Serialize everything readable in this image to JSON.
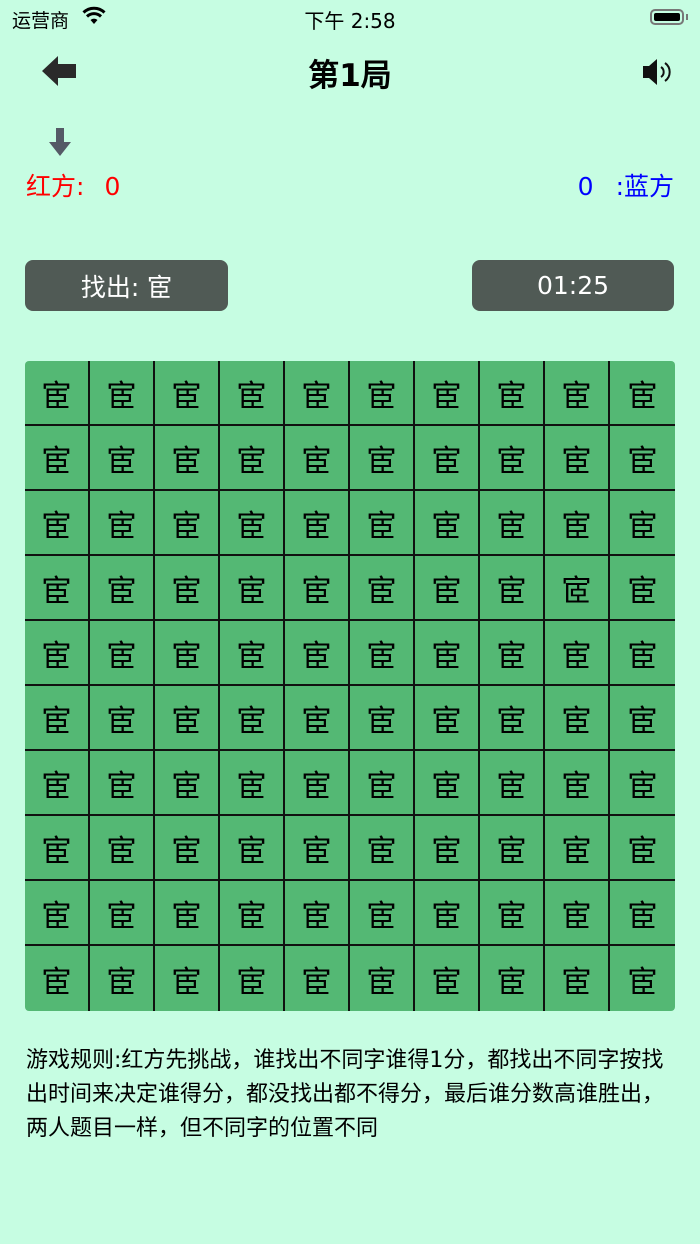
{
  "status_bar": {
    "carrier": "运营商",
    "time": "下午 2:58",
    "wifi_icon": "wifi-icon",
    "battery_icon": "battery-icon"
  },
  "header": {
    "title": "第1局",
    "back_icon": "arrow-left-icon",
    "sound_icon": "speaker-icon"
  },
  "turn_indicator_icon": "arrow-down-icon",
  "scores": {
    "red_label": "红方:",
    "red_score": "0",
    "blue_score": "0",
    "blue_label": ":蓝方",
    "red_color": "#ff0000",
    "blue_color": "#0000ff"
  },
  "find_button": "找出:  宦",
  "timer": "01:25",
  "grid": {
    "rows": [
      [
        "宦",
        "宦",
        "宦",
        "宦",
        "宦",
        "宦",
        "宦",
        "宦",
        "宦",
        "宦"
      ],
      [
        "宦",
        "宦",
        "宦",
        "宦",
        "宦",
        "宦",
        "宦",
        "宦",
        "宦",
        "宦"
      ],
      [
        "宦",
        "宦",
        "宦",
        "宦",
        "宦",
        "宦",
        "宦",
        "宦",
        "宦",
        "宦"
      ],
      [
        "宦",
        "宦",
        "宦",
        "宦",
        "宦",
        "宦",
        "宦",
        "宦",
        "宧",
        "宦"
      ],
      [
        "宦",
        "宦",
        "宦",
        "宦",
        "宦",
        "宦",
        "宦",
        "宦",
        "宦",
        "宦"
      ],
      [
        "宦",
        "宦",
        "宦",
        "宦",
        "宦",
        "宦",
        "宦",
        "宦",
        "宦",
        "宦"
      ],
      [
        "宦",
        "宦",
        "宦",
        "宦",
        "宦",
        "宦",
        "宦",
        "宦",
        "宦",
        "宦"
      ],
      [
        "宦",
        "宦",
        "宦",
        "宦",
        "宦",
        "宦",
        "宦",
        "宦",
        "宦",
        "宦"
      ],
      [
        "宦",
        "宦",
        "宦",
        "宦",
        "宦",
        "宦",
        "宦",
        "宦",
        "宦",
        "宦"
      ],
      [
        "宦",
        "宦",
        "宦",
        "宦",
        "宦",
        "宦",
        "宦",
        "宦",
        "宦",
        "宦"
      ]
    ]
  },
  "rules": "游戏规则:红方先挑战，谁找出不同字谁得1分，都找出不同字按找出时间来决定谁得分，都没找出都不得分，最后谁分数高谁胜出，两人题目一样，但不同字的位置不同"
}
